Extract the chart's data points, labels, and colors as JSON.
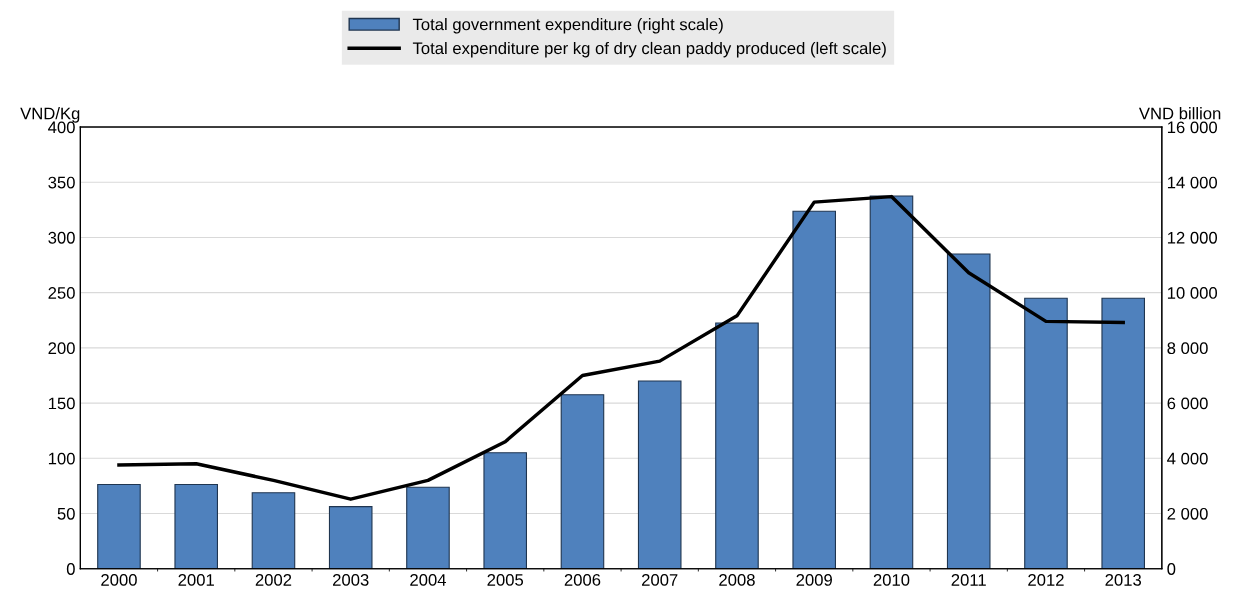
{
  "chart_data": {
    "type": "bar",
    "ylabel": "VND/Kg",
    "y2label": "VND billion",
    "categories": [
      "2000",
      "2001",
      "2002",
      "2003",
      "2004",
      "2005",
      "2006",
      "2007",
      "2008",
      "2009",
      "2010",
      "2011",
      "2012",
      "2013"
    ],
    "series": [
      {
        "name": "Total government expenditure (right scale)",
        "axis": "y2",
        "color": "#4f81bd",
        "values": [
          3050,
          3050,
          2750,
          2250,
          2950,
          4200,
          6300,
          6800,
          8900,
          12950,
          13500,
          11400,
          9800,
          9800
        ]
      },
      {
        "name": "Total expenditure per kg of dry clean paddy produced (left scale)",
        "type": "line",
        "color": "#000000",
        "values": [
          94,
          95,
          80,
          63,
          80,
          115,
          175,
          188,
          229,
          332,
          337,
          268,
          224,
          223
        ]
      }
    ],
    "ylim": [
      0,
      400
    ],
    "yticks": [
      0,
      50,
      100,
      150,
      200,
      250,
      300,
      350,
      400
    ],
    "y2lim": [
      0,
      16000
    ],
    "y2ticks": [
      0,
      {
        "value": 2000,
        "label": "2 000"
      },
      {
        "value": 4000,
        "label": "4 000"
      },
      {
        "value": 6000,
        "label": "6 000"
      },
      {
        "value": 8000,
        "label": "8 000"
      },
      {
        "value": 10000,
        "label": "10 000"
      },
      {
        "value": 12000,
        "label": "12 000"
      },
      {
        "value": 14000,
        "label": "14 000"
      },
      {
        "value": 16000,
        "label": "16 000"
      }
    ],
    "grid": true,
    "legend": "top",
    "marker": "none",
    "line_style": "solid"
  }
}
